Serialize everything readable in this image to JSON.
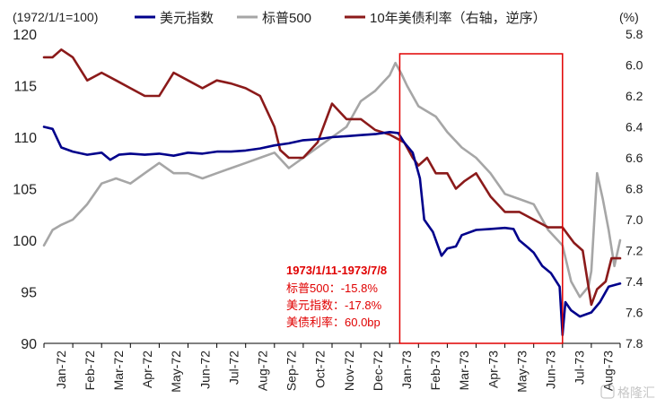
{
  "chart_data": {
    "type": "line",
    "left_axis_unit": "(1972/1/1=100)",
    "right_axis_unit": "(%)",
    "x_categories": [
      "Jan-72",
      "Feb-72",
      "Mar-72",
      "Apr-72",
      "May-72",
      "Jun-72",
      "Jul-72",
      "Aug-72",
      "Sep-72",
      "Oct-72",
      "Nov-72",
      "Dec-72",
      "Jan-73",
      "Feb-73",
      "Mar-73",
      "Apr-73",
      "May-73",
      "Jun-73",
      "Jul-73",
      "Aug-73"
    ],
    "ylim_left": [
      90,
      120
    ],
    "yticks_left": [
      90,
      95,
      100,
      105,
      110,
      115,
      120
    ],
    "ylim_right_reversed": [
      5.8,
      7.8
    ],
    "yticks_right": [
      5.8,
      6.0,
      6.2,
      6.4,
      6.6,
      6.8,
      7.0,
      7.2,
      7.4,
      7.6,
      7.8
    ],
    "series": [
      {
        "name": "美元指数",
        "axis": "left",
        "color": "#00008B",
        "x": [
          0,
          0.3,
          0.6,
          1,
          1.5,
          2,
          2.3,
          2.6,
          3,
          3.5,
          4,
          4.5,
          5,
          5.5,
          6,
          6.5,
          7,
          7.5,
          8,
          8.5,
          9,
          9.5,
          10,
          10.5,
          11,
          11.5,
          12,
          12.3,
          12.5,
          12.8,
          13,
          13.05,
          13.2,
          13.5,
          13.8,
          14,
          14.3,
          14.5,
          15,
          15.5,
          16,
          16.3,
          16.5,
          16.8,
          17,
          17.3,
          17.6,
          17.9,
          18,
          18.1,
          18.3,
          18.6,
          19,
          19.3,
          19.6,
          20
        ],
        "y": [
          111,
          110.8,
          109,
          108.6,
          108.3,
          108.5,
          107.8,
          108.3,
          108.4,
          108.3,
          108.4,
          108.2,
          108.5,
          108.4,
          108.6,
          108.6,
          108.7,
          108.9,
          109.2,
          109.4,
          109.7,
          109.8,
          110,
          110.1,
          110.2,
          110.3,
          110.5,
          110.4,
          109.5,
          108.5,
          106.5,
          106,
          102,
          100.8,
          98.5,
          99.2,
          99.4,
          100.5,
          101,
          101.1,
          101.2,
          101.1,
          100,
          99.3,
          98.8,
          97.5,
          96.8,
          95.5,
          90.8,
          94,
          93.2,
          92.6,
          93,
          94,
          95.5,
          95.8
        ]
      },
      {
        "name": "标普500",
        "axis": "left",
        "color": "#A6A6A6",
        "x": [
          0,
          0.3,
          0.6,
          1,
          1.5,
          2,
          2.5,
          3,
          3.5,
          4,
          4.5,
          5,
          5.5,
          6,
          6.5,
          7,
          7.5,
          8,
          8.5,
          9,
          9.5,
          10,
          10.5,
          11,
          11.5,
          12,
          12.2,
          12.4,
          12.6,
          12.8,
          13,
          13.3,
          13.6,
          14,
          14.5,
          15,
          15.5,
          16,
          16.5,
          17,
          17.5,
          18,
          18.3,
          18.6,
          18.9,
          19,
          19.2,
          19.4,
          19.6,
          19.8,
          20
        ],
        "y": [
          99.5,
          101,
          101.5,
          102,
          103.5,
          105.5,
          106,
          105.5,
          106.5,
          107.5,
          106.5,
          106.5,
          106,
          106.5,
          107,
          107.5,
          108,
          108.5,
          107,
          108,
          109,
          110,
          111,
          113.5,
          114.5,
          116,
          117.2,
          116.2,
          115,
          114,
          113,
          112.5,
          112,
          110.5,
          109,
          108,
          106.5,
          104.5,
          104,
          103.5,
          101,
          99.5,
          96,
          94.5,
          95.5,
          97,
          106.5,
          104,
          101,
          97.5,
          100
        ]
      },
      {
        "name": "10年美债利率（右轴，逆序）",
        "axis": "right",
        "color": "#8B1A1A",
        "x": [
          0,
          0.3,
          0.6,
          1,
          1.5,
          2,
          2.5,
          3,
          3.5,
          4,
          4.5,
          5,
          5.5,
          6,
          6.5,
          7,
          7.5,
          8,
          8.2,
          8.5,
          9,
          9.5,
          10,
          10.5,
          11,
          11.5,
          12,
          12.5,
          12.8,
          13,
          13.3,
          13.6,
          14,
          14.3,
          14.6,
          15,
          15.5,
          16,
          16.5,
          17,
          17.5,
          18,
          18.2,
          18.4,
          18.7,
          19,
          19.2,
          19.5,
          19.7,
          20
        ],
        "y": [
          5.95,
          5.95,
          5.9,
          5.95,
          6.1,
          6.05,
          6.1,
          6.15,
          6.2,
          6.2,
          6.05,
          6.1,
          6.15,
          6.1,
          6.12,
          6.15,
          6.2,
          6.4,
          6.55,
          6.6,
          6.6,
          6.5,
          6.25,
          6.35,
          6.35,
          6.42,
          6.45,
          6.5,
          6.6,
          6.65,
          6.6,
          6.7,
          6.7,
          6.8,
          6.75,
          6.7,
          6.85,
          6.95,
          6.95,
          7.0,
          7.05,
          7.05,
          7.1,
          7.15,
          7.2,
          7.55,
          7.45,
          7.4,
          7.25,
          7.25
        ]
      }
    ],
    "legend_placement": "top",
    "grid": false,
    "annotation": {
      "highlight_range_label": "1973/1/11-1973/7/8",
      "lines": [
        "标普500：-15.8%",
        "美元指数：-17.8%",
        "美债利率：60.0bp"
      ],
      "box_x_from": 12.35,
      "box_x_to": 18.0,
      "color": "#E00000"
    },
    "watermark": "格隆汇"
  }
}
